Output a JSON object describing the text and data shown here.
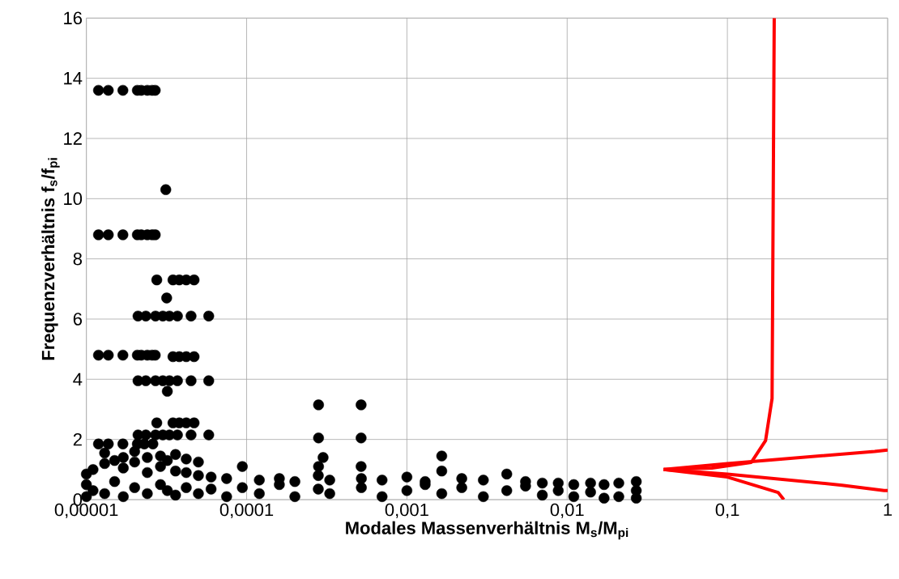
{
  "chart_data": {
    "type": "scatter",
    "xlabel": "Modales Massenverhältnis M$_{s}$/M$_{pi}$",
    "ylabel": "Frequenzverhältnis f$_{s}$/f$_{pi}$",
    "log": "x",
    "grid": true,
    "xlim": [
      1e-05,
      1
    ],
    "ylim": [
      0,
      16
    ],
    "xticks": [
      {
        "value": 1e-05,
        "label": "0,00001"
      },
      {
        "value": 0.0001,
        "label": "0,0001"
      },
      {
        "value": 0.001,
        "label": "0,001"
      },
      {
        "value": 0.01,
        "label": "0,01"
      },
      {
        "value": 0.1,
        "label": "0,1"
      },
      {
        "value": 1,
        "label": "1"
      }
    ],
    "yticks": [
      0,
      2,
      4,
      6,
      8,
      10,
      12,
      14,
      16
    ],
    "series": [
      {
        "color": "#000000",
        "x": [
          1.19e-05,
          1.37e-05,
          1.69e-05,
          2.08e-05,
          2.2e-05,
          2.4e-05,
          2.57e-05,
          2.69e-05,
          1.19e-05,
          1.37e-05,
          1.69e-05,
          2.08e-05,
          2.2e-05,
          2.4e-05,
          2.57e-05,
          2.69e-05,
          1.19e-05,
          1.37e-05,
          1.69e-05,
          2.08e-05,
          2.2e-05,
          2.4e-05,
          2.57e-05,
          2.69e-05,
          3.13e-05,
          2.75e-05,
          3.47e-05,
          3.8e-05,
          4.2e-05,
          4.7e-05,
          3.17e-05,
          2.1e-05,
          2.35e-05,
          2.7e-05,
          3e-05,
          3.3e-05,
          3.7e-05,
          4.5e-05,
          5.8e-05,
          3.47e-05,
          3.8e-05,
          4.2e-05,
          4.7e-05,
          2.1e-05,
          2.35e-05,
          2.7e-05,
          3e-05,
          3.3e-05,
          3.7e-05,
          4.5e-05,
          5.8e-05,
          3.2e-05,
          2.75e-05,
          3.47e-05,
          3.8e-05,
          4.2e-05,
          4.7e-05,
          2.1e-05,
          2.35e-05,
          2.7e-05,
          3e-05,
          3.3e-05,
          3.7e-05,
          4.5e-05,
          5.8e-05,
          1.19e-05,
          1.37e-05,
          1.69e-05,
          2.08e-05,
          2.3e-05,
          2.6e-05,
          0.000281,
          0.000281,
          0.000281,
          0.000518,
          0.000518,
          0.000518,
          0.0003,
          0.00165,
          0.00165,
          1e-05,
          1e-05,
          1e-05,
          1.1e-05,
          1.1e-05,
          1.3e-05,
          1.3e-05,
          1.3e-05,
          1.5e-05,
          1.5e-05,
          1.7e-05,
          1.7e-05,
          1.7e-05,
          2e-05,
          2e-05,
          2e-05,
          2.4e-05,
          2.4e-05,
          2.4e-05,
          2.9e-05,
          2.9e-05,
          2.9e-05,
          3.2e-05,
          3.2e-05,
          3.6e-05,
          3.6e-05,
          3.6e-05,
          4.2e-05,
          4.2e-05,
          4.2e-05,
          5e-05,
          5e-05,
          5e-05,
          6e-05,
          6e-05,
          7.5e-05,
          7.5e-05,
          9.4e-05,
          9.4e-05,
          0.00012,
          0.00012,
          0.00016,
          0.00016,
          0.0002,
          0.0002,
          0.00028,
          0.00028,
          0.00033,
          0.00033,
          0.00052,
          0.00052,
          0.0007,
          0.0007,
          0.001,
          0.001,
          0.0013,
          0.0013,
          0.00165,
          0.0022,
          0.0022,
          0.003,
          0.003,
          0.0042,
          0.0042,
          0.0055,
          0.0055,
          0.007,
          0.007,
          0.0088,
          0.0088,
          0.011,
          0.011,
          0.014,
          0.014,
          0.017,
          0.017,
          0.021,
          0.021,
          0.027,
          0.027,
          0.027
        ],
        "values": [
          13.6,
          13.6,
          13.6,
          13.6,
          13.6,
          13.6,
          13.6,
          13.6,
          8.8,
          8.8,
          8.8,
          8.8,
          8.8,
          8.8,
          8.8,
          8.8,
          4.8,
          4.8,
          4.8,
          4.8,
          4.8,
          4.8,
          4.8,
          4.8,
          10.3,
          7.3,
          7.3,
          7.3,
          7.3,
          7.3,
          6.7,
          6.1,
          6.1,
          6.1,
          6.1,
          6.1,
          6.1,
          6.1,
          6.1,
          4.75,
          4.75,
          4.75,
          4.75,
          3.95,
          3.95,
          3.95,
          3.95,
          3.95,
          3.95,
          3.95,
          3.95,
          3.6,
          2.55,
          2.55,
          2.55,
          2.55,
          2.55,
          2.15,
          2.15,
          2.15,
          2.15,
          2.15,
          2.15,
          2.15,
          2.15,
          1.85,
          1.85,
          1.85,
          1.85,
          1.85,
          1.85,
          3.15,
          2.05,
          1.1,
          3.15,
          2.05,
          1.1,
          1.4,
          1.45,
          0.95,
          0.1,
          0.5,
          0.85,
          0.3,
          1.0,
          0.2,
          1.2,
          1.55,
          0.6,
          1.3,
          0.1,
          1.05,
          1.4,
          0.4,
          1.25,
          1.6,
          0.2,
          0.9,
          1.4,
          0.5,
          1.1,
          1.45,
          0.3,
          1.3,
          0.15,
          0.95,
          1.5,
          0.4,
          0.9,
          1.35,
          0.2,
          0.8,
          1.25,
          0.35,
          0.75,
          0.1,
          0.7,
          0.4,
          1.1,
          0.2,
          0.65,
          0.5,
          0.7,
          0.1,
          0.6,
          0.35,
          0.8,
          0.2,
          0.65,
          0.4,
          0.7,
          0.1,
          0.65,
          0.3,
          0.75,
          0.5,
          0.6,
          0.2,
          0.4,
          0.7,
          0.1,
          0.65,
          0.3,
          0.85,
          0.45,
          0.6,
          0.15,
          0.55,
          0.3,
          0.55,
          0.1,
          0.5,
          0.25,
          0.55,
          0.05,
          0.5,
          0.1,
          0.55,
          0.05,
          0.3,
          0.6
        ]
      },
      {
        "type": "line",
        "marker": "none",
        "color": "#ff0000",
        "x": [
          0.04,
          0.08,
          0.141,
          0.173,
          0.19,
          0.196
        ],
        "values": [
          1.0,
          1.05,
          1.24,
          1.96,
          3.36,
          16
        ]
      },
      {
        "type": "line",
        "marker": "none",
        "color": "#ff0000",
        "x": [
          0.04,
          0.1,
          0.83,
          1.0
        ],
        "values": [
          1.0,
          1.2,
          1.6,
          1.65
        ]
      },
      {
        "type": "line",
        "marker": "none",
        "color": "#ff0000",
        "x": [
          0.04,
          0.1,
          0.52,
          0.95,
          1.0
        ],
        "values": [
          1.0,
          0.85,
          0.48,
          0.3,
          0.3
        ]
      },
      {
        "type": "line",
        "marker": "none",
        "color": "#ff0000",
        "x": [
          0.04,
          0.1,
          0.207,
          0.225
        ],
        "values": [
          1.0,
          0.75,
          0.24,
          0
        ]
      }
    ]
  }
}
